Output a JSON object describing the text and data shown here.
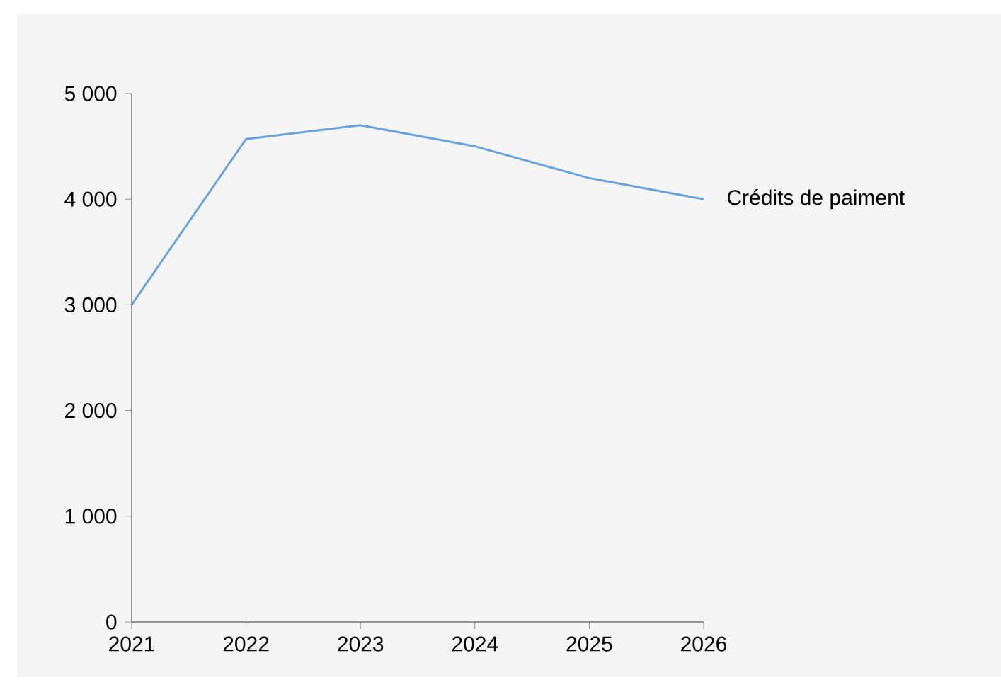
{
  "chart_data": {
    "type": "line",
    "x": [
      2021,
      2022,
      2023,
      2024,
      2025,
      2026
    ],
    "series": [
      {
        "name": "Crédits de paiment",
        "color": "#6aa3dc",
        "values": [
          3000,
          4570,
          4700,
          4500,
          4200,
          4000
        ]
      }
    ],
    "xlim": [
      2021,
      2026
    ],
    "xticks": [
      2021,
      2022,
      2023,
      2024,
      2025,
      2026
    ],
    "ylim": [
      0,
      5000
    ],
    "yticks": [
      0,
      {
        "value": 1000,
        "label": "1 000"
      },
      {
        "value": 2000,
        "label": "2 000"
      },
      {
        "value": 3000,
        "label": "3 000"
      },
      {
        "value": 4000,
        "label": "4 000"
      },
      {
        "value": 5000,
        "label": "5 000"
      }
    ],
    "grid": false,
    "legend": false
  }
}
